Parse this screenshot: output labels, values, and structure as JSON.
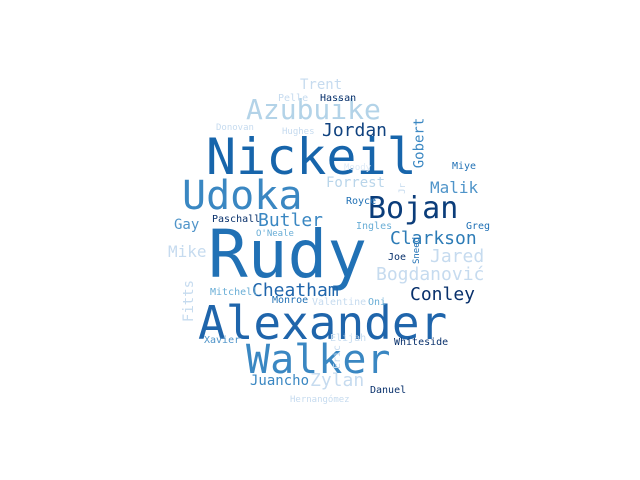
{
  "words": [
    {
      "text": "Rudy",
      "color": "#2171b5"
    },
    {
      "text": "Alexander",
      "color": "#1f65ab"
    },
    {
      "text": "Nickeil",
      "color": "#1765ab"
    },
    {
      "text": "Walker",
      "color": "#3a87c2"
    },
    {
      "text": "Udoka",
      "color": "#3a87c2"
    },
    {
      "text": "Bojan",
      "color": "#0b3d7a"
    },
    {
      "text": "Azubuike",
      "color": "#b3d3e8"
    },
    {
      "text": "Clarkson",
      "color": "#2c7bb6"
    },
    {
      "text": "Conley",
      "color": "#08306b"
    },
    {
      "text": "Butler",
      "color": "#3a87c2"
    },
    {
      "text": "Cheatham",
      "color": "#1f65ab"
    },
    {
      "text": "Jordan",
      "color": "#10427f"
    },
    {
      "text": "Bogdanović",
      "color": "#c6dbef"
    },
    {
      "text": "Zylan",
      "color": "#c6dbef"
    },
    {
      "text": "Jared",
      "color": "#c6dbef"
    },
    {
      "text": "Malik",
      "color": "#4f94c9"
    },
    {
      "text": "Forrest",
      "color": "#b9d5ea"
    },
    {
      "text": "Trent",
      "color": "#c6dbef"
    },
    {
      "text": "Mike",
      "color": "#c6dbef"
    },
    {
      "text": "Fitts",
      "color": "#c6dbef"
    },
    {
      "text": "Gobert",
      "color": "#3a87c2"
    },
    {
      "text": "Juancho",
      "color": "#3a87c2"
    },
    {
      "text": "Gay",
      "color": "#4f94c9"
    },
    {
      "text": "Paschall",
      "color": "#08306b"
    },
    {
      "text": "O'Neale",
      "color": "#6aaed6"
    },
    {
      "text": "Royce",
      "color": "#2171b5"
    },
    {
      "text": "Ingles",
      "color": "#6aaed6"
    },
    {
      "text": "Greg",
      "color": "#2171b5"
    },
    {
      "text": "Miye",
      "color": "#2171b5"
    },
    {
      "text": "Joe",
      "color": "#08306b"
    },
    {
      "text": "Sneed",
      "color": "#2171b5"
    },
    {
      "text": "Jr",
      "color": "#c6dbef"
    },
    {
      "text": "Moody",
      "color": "#deebf7"
    },
    {
      "text": "Pelle",
      "color": "#c6dbef"
    },
    {
      "text": "Hassan",
      "color": "#08306b"
    },
    {
      "text": "Donovan",
      "color": "#c6dbef"
    },
    {
      "text": "Hughes",
      "color": "#c6dbef"
    },
    {
      "text": "Mitchell",
      "color": "#6aaed6"
    },
    {
      "text": "Monroe",
      "color": "#2171b5"
    },
    {
      "text": "Valentine",
      "color": "#c6dbef"
    },
    {
      "text": "Oni",
      "color": "#6aaed6"
    },
    {
      "text": "Xavier",
      "color": "#4f94c9"
    },
    {
      "text": "Elijah",
      "color": "#c6dbef"
    },
    {
      "text": "Whiteside",
      "color": "#08306b"
    },
    {
      "text": "Eric",
      "color": "#c6dbef"
    },
    {
      "text": "Danuel",
      "color": "#08306b"
    },
    {
      "text": "Hernangómez",
      "color": "#c6dbef"
    }
  ]
}
